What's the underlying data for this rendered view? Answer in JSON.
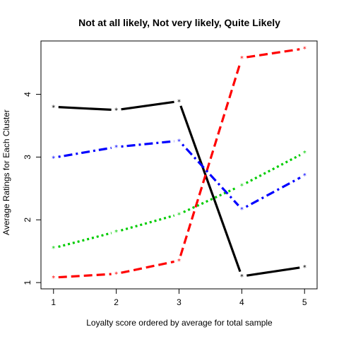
{
  "chart_data": {
    "type": "line",
    "title": "Not at all likely, Not very likely, Quite Likely",
    "xlabel": "Loyalty score ordered by average for total sample",
    "ylabel": "Average Ratings for Each Cluster",
    "x": [
      1,
      2,
      3,
      4,
      5
    ],
    "x_ticks": [
      "1",
      "2",
      "3",
      "4",
      "5"
    ],
    "y_ticks": [
      "1",
      "2",
      "3",
      "4"
    ],
    "xlim": [
      0.8,
      5.2
    ],
    "ylim": [
      0.9,
      4.85
    ],
    "grid": false,
    "legend": "none",
    "marker": "*",
    "series": [
      {
        "values": [
          3.8,
          3.75,
          3.89,
          1.1,
          1.25
        ],
        "color": "#000000",
        "dash": "solid"
      },
      {
        "values": [
          1.08,
          1.14,
          1.35,
          4.58,
          4.73
        ],
        "color": "#ff0000",
        "dash": "dashed"
      },
      {
        "values": [
          1.55,
          1.81,
          2.09,
          2.55,
          3.07
        ],
        "color": "#00cc00",
        "dash": "dotted"
      },
      {
        "values": [
          2.99,
          3.16,
          3.26,
          2.17,
          2.71
        ],
        "color": "#0000ff",
        "dash": "dotdash"
      }
    ]
  }
}
